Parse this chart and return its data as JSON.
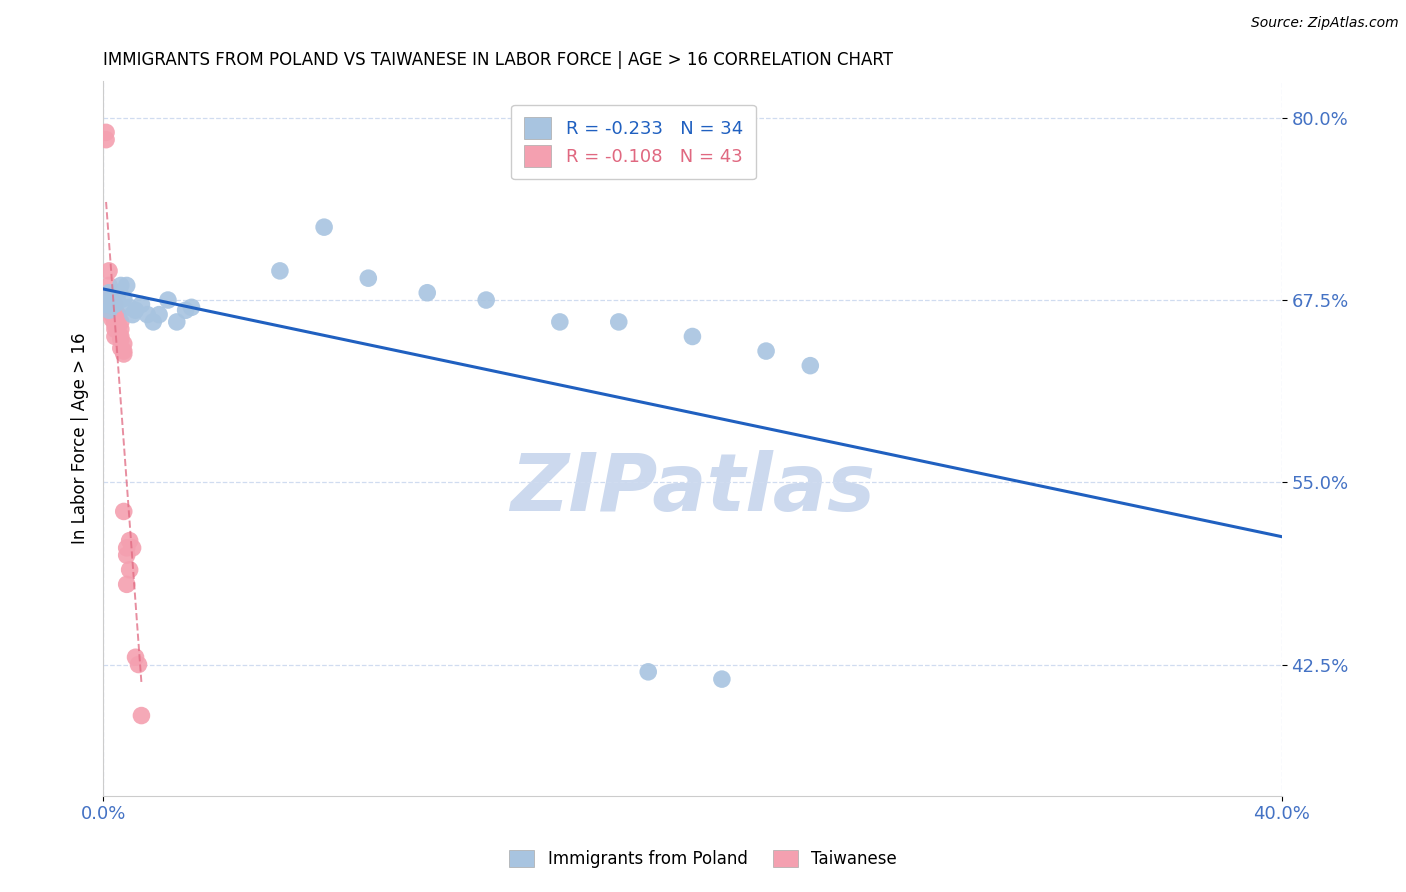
{
  "title": "IMMIGRANTS FROM POLAND VS TAIWANESE IN LABOR FORCE | AGE > 16 CORRELATION CHART",
  "source": "Source: ZipAtlas.com",
  "ylabel": "In Labor Force | Age > 16",
  "xlim": [
    0.0,
    0.4
  ],
  "ylim": [
    0.335,
    0.825
  ],
  "yticks": [
    0.425,
    0.55,
    0.675,
    0.8
  ],
  "yticklabels": [
    "42.5%",
    "55.0%",
    "67.5%",
    "80.0%"
  ],
  "poland_R": -0.233,
  "poland_N": 34,
  "taiwanese_R": -0.108,
  "taiwanese_N": 43,
  "poland_color": "#a8c4e0",
  "taiwan_color": "#f4a0b0",
  "poland_line_color": "#2060c0",
  "taiwan_line_color": "#e06880",
  "watermark": "ZIPatlas",
  "watermark_color": "#ccd9ee",
  "title_fontsize": 12,
  "tick_color": "#4472c4",
  "grid_color": "#d0dcf0",
  "poland_x": [
    0.001,
    0.002,
    0.002,
    0.003,
    0.003,
    0.004,
    0.005,
    0.005,
    0.006,
    0.007,
    0.008,
    0.009,
    0.01,
    0.011,
    0.013,
    0.015,
    0.017,
    0.019,
    0.022,
    0.025,
    0.028,
    0.03,
    0.06,
    0.075,
    0.09,
    0.11,
    0.13,
    0.155,
    0.175,
    0.2,
    0.225,
    0.24,
    0.185,
    0.21
  ],
  "poland_y": [
    0.672,
    0.668,
    0.68,
    0.671,
    0.676,
    0.672,
    0.68,
    0.674,
    0.685,
    0.676,
    0.685,
    0.67,
    0.665,
    0.668,
    0.672,
    0.665,
    0.66,
    0.665,
    0.675,
    0.66,
    0.668,
    0.67,
    0.695,
    0.725,
    0.69,
    0.68,
    0.675,
    0.66,
    0.66,
    0.65,
    0.64,
    0.63,
    0.42,
    0.415
  ],
  "taiwan_x": [
    0.001,
    0.001,
    0.001,
    0.002,
    0.002,
    0.002,
    0.002,
    0.002,
    0.003,
    0.003,
    0.003,
    0.003,
    0.003,
    0.004,
    0.004,
    0.004,
    0.004,
    0.004,
    0.004,
    0.004,
    0.005,
    0.005,
    0.005,
    0.005,
    0.005,
    0.006,
    0.006,
    0.006,
    0.006,
    0.006,
    0.007,
    0.007,
    0.007,
    0.007,
    0.008,
    0.008,
    0.008,
    0.009,
    0.009,
    0.01,
    0.011,
    0.012,
    0.013
  ],
  "taiwan_y": [
    0.79,
    0.785,
    0.675,
    0.695,
    0.685,
    0.678,
    0.672,
    0.668,
    0.675,
    0.672,
    0.668,
    0.665,
    0.662,
    0.668,
    0.672,
    0.665,
    0.66,
    0.658,
    0.655,
    0.65,
    0.66,
    0.658,
    0.665,
    0.662,
    0.655,
    0.655,
    0.66,
    0.65,
    0.648,
    0.642,
    0.645,
    0.64,
    0.638,
    0.53,
    0.505,
    0.48,
    0.5,
    0.51,
    0.49,
    0.505,
    0.43,
    0.425,
    0.39
  ]
}
